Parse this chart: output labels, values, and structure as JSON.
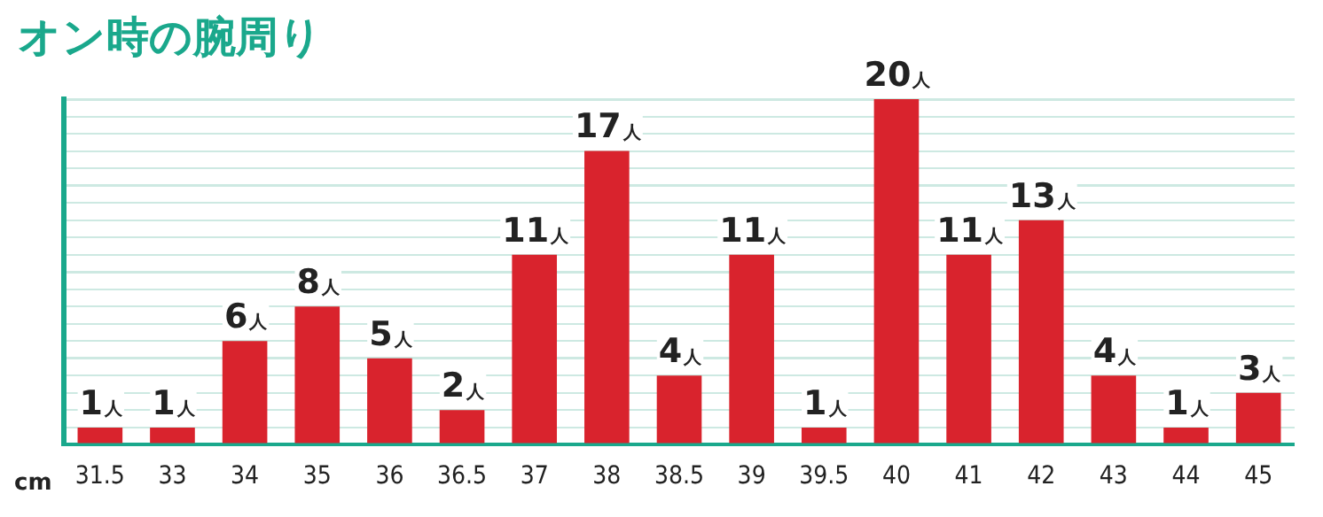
{
  "chart_data": {
    "type": "bar",
    "title": "オン時の腕周り",
    "xlabel": "cm",
    "categories": [
      "31.5",
      "33",
      "34",
      "35",
      "36",
      "36.5",
      "37",
      "38",
      "38.5",
      "39",
      "39.5",
      "40",
      "41",
      "42",
      "43",
      "44",
      "45"
    ],
    "values": [
      1,
      1,
      6,
      8,
      5,
      2,
      11,
      17,
      4,
      11,
      1,
      20,
      11,
      13,
      4,
      1,
      3
    ],
    "value_labels": [
      "1人",
      "1人",
      "6人",
      "8人",
      "5人",
      "2人",
      "11人",
      "17人",
      "4人",
      "11人",
      "1人",
      "20人",
      "11人",
      "13人",
      "4人",
      "1人",
      "3人"
    ],
    "color": "#d9232d",
    "ylim": [
      0,
      20
    ],
    "grid": "y",
    "tick_labels": "x",
    "legend": false
  }
}
